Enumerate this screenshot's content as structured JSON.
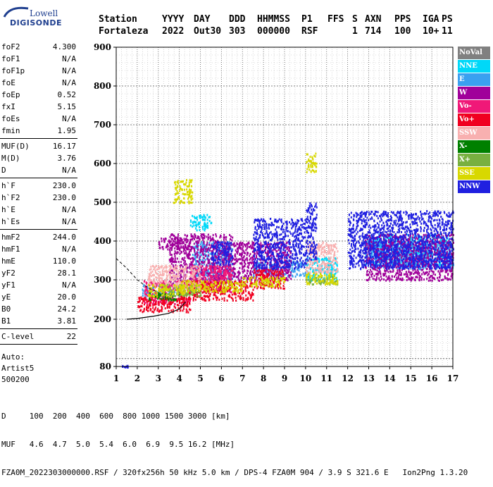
{
  "logo": {
    "line1": "Lowell",
    "line2": "DIGISONDE"
  },
  "header": {
    "labels": [
      "Station",
      "YYYY",
      "DAY",
      "DDD",
      "HHMMSS",
      "P1",
      "FFS",
      "S",
      "AXN",
      "PPS",
      "IGA",
      "PS"
    ],
    "values": [
      "Fortaleza",
      "2022",
      "Out30",
      "303",
      "000000",
      "RSF",
      "",
      "1",
      "714",
      "100",
      "10+",
      "11"
    ]
  },
  "params_group1": [
    {
      "name": "foF2",
      "value": "4.300"
    },
    {
      "name": "foF1",
      "value": "N/A"
    },
    {
      "name": "foF1p",
      "value": "N/A"
    },
    {
      "name": "foE",
      "value": "N/A"
    },
    {
      "name": "foEp",
      "value": "0.52"
    },
    {
      "name": "fxI",
      "value": "5.15"
    },
    {
      "name": "foEs",
      "value": "N/A"
    },
    {
      "name": "fmin",
      "value": "1.95"
    }
  ],
  "params_group2": [
    {
      "name": "MUF(D)",
      "value": "16.17"
    },
    {
      "name": "M(D)",
      "value": "3.76"
    },
    {
      "name": "D",
      "value": "N/A"
    }
  ],
  "params_group3": [
    {
      "name": "h`F",
      "value": "230.0"
    },
    {
      "name": "h`F2",
      "value": "230.0"
    },
    {
      "name": "h`E",
      "value": "N/A"
    },
    {
      "name": "h`Es",
      "value": "N/A"
    }
  ],
  "params_group4": [
    {
      "name": "hmF2",
      "value": "244.0"
    },
    {
      "name": "hmF1",
      "value": "N/A"
    },
    {
      "name": "hmE",
      "value": "110.0"
    },
    {
      "name": "yF2",
      "value": "28.1"
    },
    {
      "name": "yF1",
      "value": "N/A"
    },
    {
      "name": "yE",
      "value": "20.0"
    },
    {
      "name": "B0",
      "value": "24.2"
    },
    {
      "name": "B1",
      "value": "3.81"
    }
  ],
  "params_group5": [
    {
      "name": "C-level",
      "value": "22"
    }
  ],
  "auto_lines": [
    "Auto:",
    "Artist5",
    "500200"
  ],
  "legend": [
    {
      "label": "NoVal",
      "color": "#808080"
    },
    {
      "label": "NNE",
      "color": "#00d8f8"
    },
    {
      "label": "E",
      "color": "#3aa0f0"
    },
    {
      "label": "W",
      "color": "#a0009a"
    },
    {
      "label": "Vo-",
      "color": "#f01878"
    },
    {
      "label": "Vo+",
      "color": "#f00020"
    },
    {
      "label": "SSW",
      "color": "#f8b0b0"
    },
    {
      "label": "X-",
      "color": "#008000"
    },
    {
      "label": "X+",
      "color": "#78b040"
    },
    {
      "label": "SSE",
      "color": "#d8d800"
    },
    {
      "label": "NNW",
      "color": "#2020e0"
    }
  ],
  "footer": {
    "line1": "D     100  200  400  600  800 1000 1500 3000 [km]",
    "line2": "MUF   4.6  4.7  5.0  5.4  6.0  6.9  9.5 16.2 [MHz]",
    "line3": "FZA0M_2022303000000.RSF / 320fx256h 50 kHz 5.0 km / DPS-4 FZA0M 904 / 3.9 S 321.6 E   Ion2Png 1.3.20"
  },
  "chart_data": {
    "type": "scatter",
    "title": "",
    "xlabel": "",
    "ylabel": "",
    "xlim": [
      1,
      17
    ],
    "ylim": [
      80,
      900
    ],
    "x_ticks": [
      "1",
      "2",
      "3",
      "4",
      "5",
      "6",
      "7",
      "8",
      "9",
      "10",
      "11",
      "12",
      "13",
      "14",
      "15",
      "16",
      "17"
    ],
    "y_ticks": [
      "80",
      "200",
      "300",
      "400",
      "500",
      "600",
      "700",
      "800",
      "900"
    ],
    "y_tick_values": [
      80,
      200,
      300,
      400,
      500,
      600,
      700,
      800,
      900
    ],
    "grid": true,
    "series": [
      {
        "name": "NNE",
        "clusters": [
          [
            4.5,
            430,
            5.5,
            470
          ],
          [
            10,
            300,
            11.5,
            360
          ],
          [
            12.8,
            340,
            16.8,
            420
          ]
        ]
      },
      {
        "name": "E",
        "clusters": [
          [
            2.2,
            260,
            4,
            290
          ],
          [
            7.5,
            310,
            10,
            350
          ],
          [
            13,
            330,
            17,
            400
          ],
          [
            4.6,
            300,
            6.5,
            400
          ]
        ]
      },
      {
        "name": "W",
        "clusters": [
          [
            3,
            380,
            4.5,
            410
          ],
          [
            3.5,
            290,
            6.5,
            420
          ],
          [
            6.5,
            300,
            9.3,
            400
          ],
          [
            12.8,
            300,
            17,
            420
          ]
        ]
      },
      {
        "name": "Vo-",
        "clusters": [
          [
            2.3,
            240,
            4.5,
            300
          ],
          [
            4.5,
            270,
            6.5,
            340
          ]
        ]
      },
      {
        "name": "Vo+",
        "clusters": [
          [
            2,
            220,
            4.5,
            260
          ],
          [
            4,
            250,
            7.5,
            300
          ],
          [
            7.5,
            280,
            9,
            330
          ]
        ]
      },
      {
        "name": "SSW",
        "clusters": [
          [
            2.5,
            280,
            5,
            340
          ],
          [
            10,
            320,
            11.5,
            400
          ]
        ]
      },
      {
        "name": "X-",
        "clusters": [
          [
            2.5,
            250,
            4,
            270
          ]
        ]
      },
      {
        "name": "X+",
        "clusters": [
          [
            3,
            260,
            5,
            290
          ],
          [
            10,
            290,
            11.5,
            310
          ]
        ]
      },
      {
        "name": "SSE",
        "clusters": [
          [
            2.5,
            260,
            4.2,
            290
          ],
          [
            4,
            270,
            7,
            300
          ],
          [
            7,
            285,
            9,
            310
          ],
          [
            10,
            290,
            11.5,
            320
          ],
          [
            3.7,
            500,
            4.6,
            560
          ],
          [
            10,
            580,
            10.5,
            630
          ]
        ]
      },
      {
        "name": "NNW",
        "clusters": [
          [
            5.5,
            340,
            6.5,
            400
          ],
          [
            7.5,
            330,
            10,
            460
          ],
          [
            10,
            350,
            10.5,
            500
          ],
          [
            12,
            330,
            17,
            480
          ],
          [
            1.2,
            80,
            1.6,
            85
          ]
        ]
      }
    ],
    "profile_curve": [
      [
        4.3,
        244
      ],
      [
        4.0,
        226
      ],
      [
        3.5,
        215
      ],
      [
        2.8,
        208
      ],
      [
        2.0,
        202
      ],
      [
        1.5,
        200
      ]
    ],
    "profile_curve_upper": [
      [
        1.0,
        355
      ],
      [
        1.5,
        330
      ],
      [
        2.0,
        300
      ],
      [
        2.5,
        280
      ],
      [
        3.0,
        268
      ]
    ]
  }
}
